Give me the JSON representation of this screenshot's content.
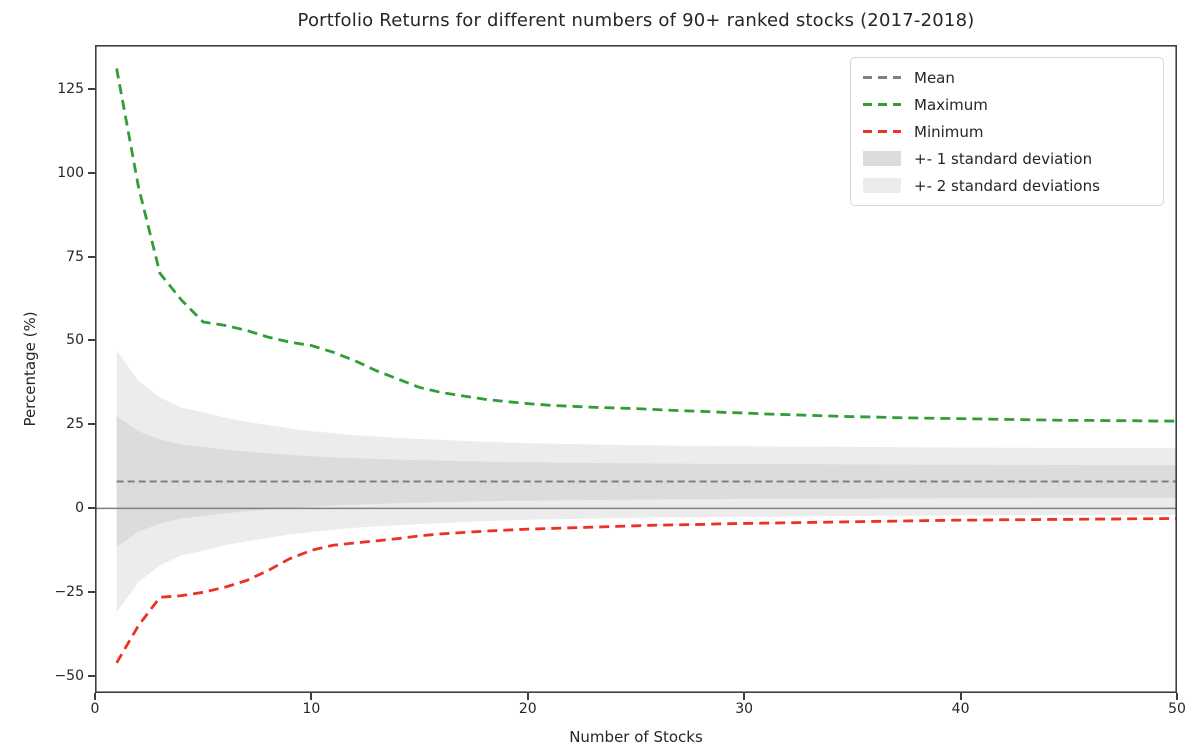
{
  "figure": {
    "title": "Portfolio Returns for different numbers of 90+ ranked stocks (2017-2018)",
    "xlabel": "Number of Stocks",
    "ylabel": "Percentage (%)"
  },
  "legend": {
    "items": [
      {
        "label": "Mean",
        "style": "dashed-line",
        "color": "#7f7f7f"
      },
      {
        "label": "Maximum",
        "style": "dashed-line",
        "color": "#2f9e38"
      },
      {
        "label": "Minimum",
        "style": "dashed-line",
        "color": "#ea3323"
      },
      {
        "label": "+- 1 standard deviation",
        "style": "patch",
        "color": "#dcdcdc"
      },
      {
        "label": "+- 2 standard deviations",
        "style": "patch",
        "color": "#ececec"
      }
    ]
  },
  "chart_data": {
    "type": "line",
    "title": "Portfolio Returns for different numbers of 90+ ranked stocks (2017-2018)",
    "xlabel": "Number of Stocks",
    "ylabel": "Percentage (%)",
    "xlim": [
      0,
      50
    ],
    "ylim": [
      -55,
      138
    ],
    "xticks": [
      0,
      10,
      20,
      30,
      40,
      50
    ],
    "yticks": [
      -50,
      -25,
      0,
      25,
      50,
      75,
      100,
      125
    ],
    "grid": false,
    "legend_position": "upper right",
    "zero_line": {
      "y": 0,
      "color": "#808080",
      "width": 1.5
    },
    "axis_color": "#3f3f3f",
    "background": "#ffffff",
    "x": [
      1,
      2,
      3,
      4,
      5,
      6,
      7,
      8,
      9,
      10,
      11,
      12,
      13,
      14,
      15,
      16,
      17,
      18,
      19,
      20,
      21,
      22,
      23,
      24,
      25,
      26,
      27,
      28,
      29,
      30,
      31,
      32,
      33,
      34,
      35,
      36,
      37,
      38,
      39,
      40,
      41,
      42,
      43,
      44,
      45,
      46,
      47,
      48,
      49,
      50
    ],
    "series": [
      {
        "name": "Mean",
        "color": "#7f7f7f",
        "dash": [
          7,
          4
        ],
        "width": 2,
        "x": [
          1,
          50
        ],
        "y": [
          8,
          8
        ]
      },
      {
        "name": "Maximum",
        "color": "#2f9e38",
        "dash": [
          10,
          6
        ],
        "width": 2.8,
        "x": [
          1,
          2,
          3,
          4,
          5,
          6,
          7,
          8,
          9,
          10,
          11,
          12,
          13,
          14,
          15,
          16,
          17,
          18,
          19,
          20,
          21,
          22,
          23,
          24,
          25,
          26,
          27,
          28,
          29,
          30,
          31,
          32,
          33,
          34,
          35,
          36,
          37,
          38,
          39,
          40,
          41,
          42,
          43,
          44,
          45,
          46,
          47,
          48,
          49,
          50
        ],
        "y": [
          131,
          96,
          70,
          62,
          55.5,
          54.5,
          53,
          51,
          49.5,
          48.5,
          46.5,
          44,
          41,
          38.5,
          36,
          34.5,
          33.5,
          32.5,
          31.8,
          31.2,
          30.7,
          30.4,
          30.1,
          29.9,
          29.7,
          29.4,
          29.1,
          28.9,
          28.6,
          28.4,
          28.1,
          27.9,
          27.7,
          27.5,
          27.3,
          27.2,
          27,
          26.9,
          26.8,
          26.7,
          26.6,
          26.5,
          26.4,
          26.3,
          26.2,
          26.2,
          26.1,
          26.1,
          26,
          26
        ]
      },
      {
        "name": "Minimum",
        "color": "#ea3323",
        "dash": [
          10,
          6
        ],
        "width": 2.8,
        "x": [
          1,
          2,
          3,
          4,
          5,
          6,
          7,
          8,
          9,
          10,
          11,
          12,
          13,
          14,
          15,
          16,
          17,
          18,
          19,
          20,
          21,
          22,
          23,
          24,
          25,
          26,
          27,
          28,
          29,
          30,
          31,
          32,
          33,
          34,
          35,
          36,
          37,
          38,
          39,
          40,
          41,
          42,
          43,
          44,
          45,
          46,
          47,
          48,
          49,
          50
        ],
        "y": [
          -46,
          -35,
          -26.5,
          -26,
          -25,
          -23.5,
          -21.5,
          -18.5,
          -15,
          -12.5,
          -11,
          -10.3,
          -9.7,
          -9,
          -8.2,
          -7.6,
          -7.2,
          -6.8,
          -6.5,
          -6.2,
          -6,
          -5.8,
          -5.6,
          -5.4,
          -5.2,
          -5,
          -4.9,
          -4.8,
          -4.6,
          -4.5,
          -4.4,
          -4.3,
          -4.2,
          -4.1,
          -4,
          -3.9,
          -3.8,
          -3.7,
          -3.6,
          -3.5,
          -3.5,
          -3.4,
          -3.4,
          -3.3,
          -3.3,
          -3.2,
          -3.2,
          -3.1,
          -3.1,
          -3
        ]
      }
    ],
    "bands": [
      {
        "name": "+- 2 standard deviations",
        "color": "#ececec",
        "x": [
          1,
          2,
          3,
          4,
          5,
          6,
          7,
          8,
          9,
          10,
          12,
          14,
          16,
          18,
          20,
          25,
          30,
          35,
          40,
          45,
          50
        ],
        "top": [
          47,
          38,
          33,
          30,
          28.6,
          27,
          25.8,
          24.8,
          23.8,
          23,
          21.8,
          21,
          20.4,
          19.8,
          19.4,
          18.8,
          18.5,
          18.3,
          18.1,
          18,
          18
        ],
        "bottom": [
          -31,
          -22,
          -17,
          -14,
          -12.6,
          -11,
          -9.8,
          -8.8,
          -7.8,
          -7,
          -5.8,
          -5,
          -4.4,
          -3.8,
          -3.4,
          -2.8,
          -2.5,
          -2.3,
          -2.1,
          -2,
          -2
        ]
      },
      {
        "name": "+- 1 standard deviation",
        "color": "#dcdcdc",
        "x": [
          1,
          2,
          3,
          4,
          5,
          6,
          7,
          8,
          9,
          10,
          12,
          14,
          16,
          18,
          20,
          25,
          30,
          35,
          40,
          45,
          50
        ],
        "top": [
          27.5,
          23,
          20.5,
          19,
          18.3,
          17.5,
          16.9,
          16.4,
          15.9,
          15.5,
          14.9,
          14.5,
          14.2,
          13.9,
          13.7,
          13.4,
          13.2,
          13.1,
          13,
          12.9,
          12.8
        ],
        "bottom": [
          -11.5,
          -7,
          -4.5,
          -3,
          -2.3,
          -1.5,
          -0.9,
          -0.4,
          0.1,
          0.5,
          1.1,
          1.5,
          1.8,
          2.1,
          2.3,
          2.6,
          2.8,
          2.9,
          3,
          3.1,
          3.2
        ]
      }
    ]
  }
}
